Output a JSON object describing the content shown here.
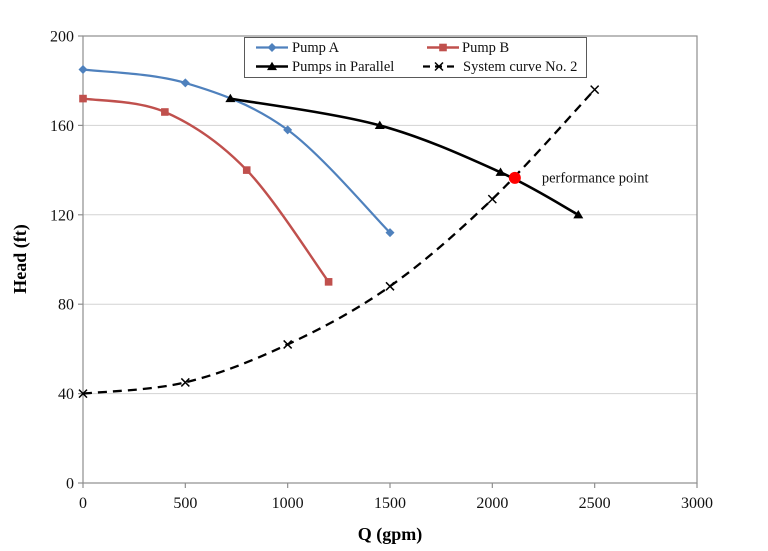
{
  "chart_data": {
    "type": "line",
    "title": "",
    "xlabel": "Q (gpm)",
    "ylabel": "Head (ft)",
    "xlim": [
      0,
      3000
    ],
    "ylim": [
      0,
      200
    ],
    "xticks": [
      0,
      500,
      1000,
      1500,
      2000,
      2500,
      3000
    ],
    "yticks": [
      0,
      40,
      80,
      120,
      160,
      200
    ],
    "grid": "horizontal-only",
    "legend_position": "top-center-inside",
    "series": [
      {
        "name": "Pump A",
        "color": "#4F81BD",
        "marker": "diamond",
        "line": "solid",
        "width": 2.2,
        "points": [
          [
            0,
            185
          ],
          [
            500,
            179
          ],
          [
            1000,
            158
          ],
          [
            1500,
            112
          ]
        ]
      },
      {
        "name": "Pump B",
        "color": "#C0504D",
        "marker": "square",
        "line": "solid",
        "width": 2.4,
        "points": [
          [
            0,
            172
          ],
          [
            400,
            166
          ],
          [
            800,
            140
          ],
          [
            1200,
            90
          ]
        ]
      },
      {
        "name": "Pumps in Parallel",
        "color": "#000000",
        "marker": "triangle",
        "line": "solid",
        "width": 2.6,
        "points": [
          [
            720,
            172
          ],
          [
            1450,
            160
          ],
          [
            2040,
            139
          ],
          [
            2420,
            120
          ]
        ]
      },
      {
        "name": "System curve No. 2",
        "color": "#000000",
        "marker": "x",
        "line": "dashed",
        "width": 2.3,
        "points": [
          [
            0,
            40
          ],
          [
            500,
            45
          ],
          [
            1000,
            62
          ],
          [
            1500,
            88
          ],
          [
            2000,
            127
          ],
          [
            2500,
            176
          ]
        ]
      }
    ],
    "annotation": {
      "label": "performance point",
      "q": 2110,
      "head": 136.5,
      "dot_color": "#FF0000"
    }
  },
  "colors": {
    "gridline": "#D3D3D3",
    "axis": "#8E8E8E",
    "legend_border": "#595959",
    "text": "#000000"
  }
}
